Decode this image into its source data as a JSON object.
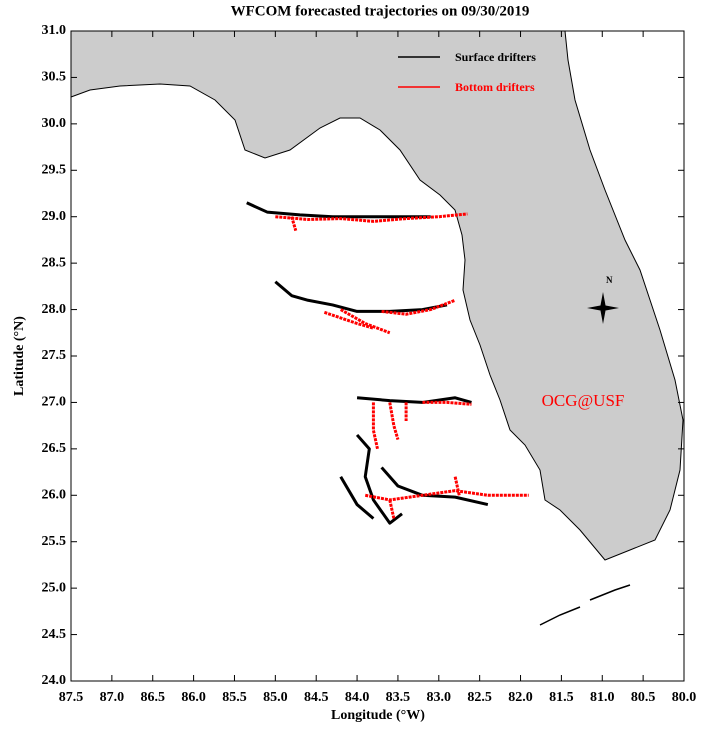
{
  "chart_data": {
    "type": "trajectory",
    "title": "WFCOM forecasted trajectories on 09/30/2019",
    "xlabel": "Longitude (°W)",
    "ylabel": "Latitude (°N)",
    "xlim": [
      87.5,
      80.0
    ],
    "ylim": [
      24.0,
      31.0
    ],
    "xticks": [
      87.5,
      {
        "value": 87,
        "label": "87.0"
      },
      86.5,
      {
        "value": 86,
        "label": "86.0"
      },
      85.5,
      {
        "value": 85,
        "label": "85.0"
      },
      84.5,
      {
        "value": 84,
        "label": "84.0"
      },
      83.5,
      {
        "value": 83,
        "label": "83.0"
      },
      82.5,
      {
        "value": 82,
        "label": "82.0"
      },
      81.5,
      {
        "value": 81,
        "label": "81.0"
      },
      80.5,
      {
        "value": 80,
        "label": "80.0"
      }
    ],
    "yticks": [
      {
        "value": 24,
        "label": "24.0"
      },
      24.5,
      {
        "value": 25,
        "label": "25.0"
      },
      25.5,
      {
        "value": 26,
        "label": "26.0"
      },
      26.5,
      {
        "value": 27,
        "label": "27.0"
      },
      27.5,
      {
        "value": 28,
        "label": "28.0"
      },
      28.5,
      {
        "value": 29,
        "label": "29.0"
      },
      29.5,
      {
        "value": 30,
        "label": "30.0"
      },
      30.5,
      {
        "value": 31,
        "label": "31.0"
      }
    ],
    "annotation": "OCG@USF",
    "annotation_color": "#ff0000",
    "compass_label": "N",
    "series": [
      {
        "name": "Surface drifters",
        "color": "#000000",
        "tracks": [
          {
            "x": [
              85.35,
              85.1,
              84.7,
              84.3,
              83.9,
              83.5,
              83.1
            ],
            "y": [
              29.15,
              29.05,
              29.02,
              29.0,
              29.0,
              29.0,
              29.0
            ]
          },
          {
            "x": [
              85.0,
              84.8,
              84.6,
              84.3,
              84.0,
              83.6,
              83.2,
              82.9
            ],
            "y": [
              28.3,
              28.15,
              28.1,
              28.05,
              27.98,
              27.98,
              28.0,
              28.05
            ]
          },
          {
            "x": [
              84.0,
              83.6,
              83.2,
              82.8,
              82.6
            ],
            "y": [
              27.05,
              27.02,
              27.0,
              27.05,
              27.0
            ]
          },
          {
            "x": [
              84.0,
              83.85,
              83.9,
              83.8,
              83.6,
              83.45
            ],
            "y": [
              26.65,
              26.5,
              26.2,
              25.95,
              25.7,
              25.8
            ]
          },
          {
            "x": [
              83.7,
              83.5,
              83.2,
              82.8,
              82.4
            ],
            "y": [
              26.3,
              26.1,
              26.0,
              25.98,
              25.9
            ]
          },
          {
            "x": [
              84.2,
              84.0,
              83.8
            ],
            "y": [
              26.2,
              25.9,
              25.75
            ]
          }
        ]
      },
      {
        "name": "Bottom drifters",
        "color": "#ff0000",
        "tracks": [
          {
            "x": [
              85.0,
              84.6,
              84.2,
              83.8,
              83.4,
              83.0,
              82.65
            ],
            "y": [
              29.0,
              28.97,
              28.98,
              28.95,
              28.98,
              29.0,
              29.03
            ]
          },
          {
            "x": [
              84.8,
              84.75
            ],
            "y": [
              29.0,
              28.85
            ]
          },
          {
            "x": [
              84.2,
              83.9,
              83.6
            ],
            "y": [
              28.0,
              27.85,
              27.75
            ]
          },
          {
            "x": [
              83.7,
              83.4,
              83.1,
              82.8
            ],
            "y": [
              27.98,
              27.95,
              28.0,
              28.1
            ]
          },
          {
            "x": [
              84.4,
              84.0,
              83.8
            ],
            "y": [
              27.97,
              27.85,
              27.8
            ]
          },
          {
            "x": [
              83.8,
              83.8,
              83.75
            ],
            "y": [
              27.0,
              26.7,
              26.5
            ]
          },
          {
            "x": [
              83.6,
              83.55,
              83.5
            ],
            "y": [
              27.0,
              26.75,
              26.6
            ]
          },
          {
            "x": [
              83.4,
              83.4
            ],
            "y": [
              27.0,
              26.8
            ]
          },
          {
            "x": [
              83.2,
              82.9,
              82.6
            ],
            "y": [
              27.0,
              27.0,
              26.98
            ]
          },
          {
            "x": [
              83.9,
              83.6,
              83.2,
              82.8,
              82.4,
              81.9
            ],
            "y": [
              26.0,
              25.95,
              26.0,
              26.05,
              26.0,
              26.0
            ]
          },
          {
            "x": [
              83.6,
              83.55
            ],
            "y": [
              25.95,
              25.75
            ]
          },
          {
            "x": [
              82.8,
              82.75
            ],
            "y": [
              26.2,
              26.0
            ]
          }
        ]
      }
    ]
  }
}
